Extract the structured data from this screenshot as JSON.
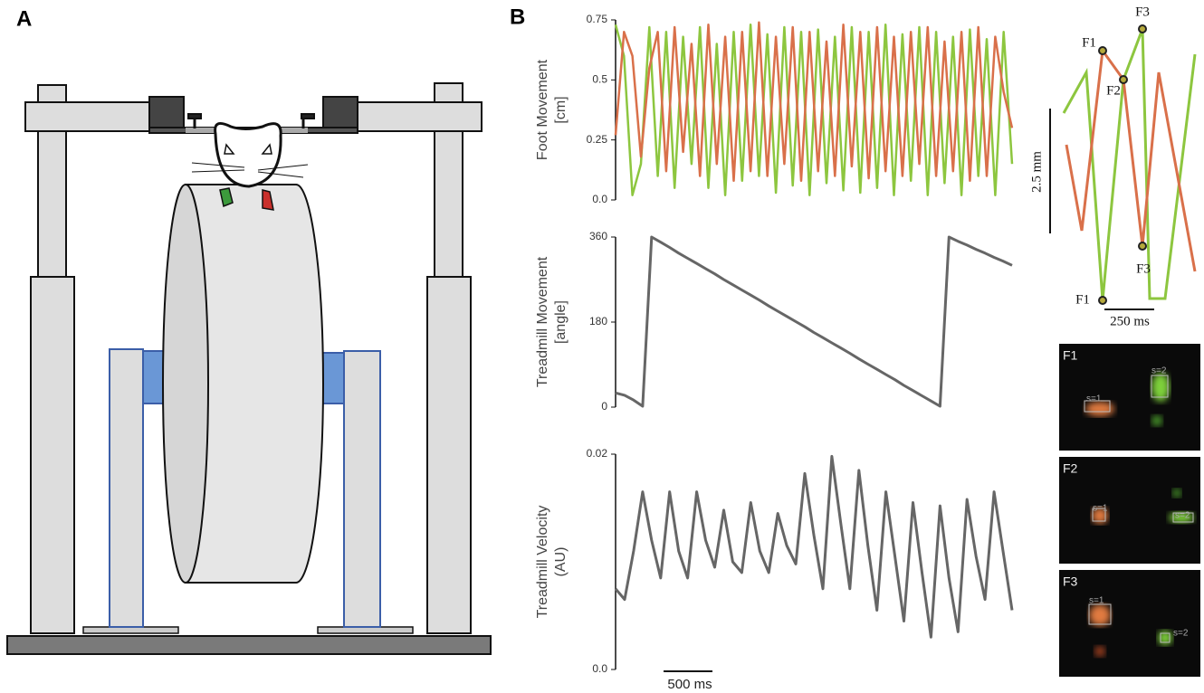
{
  "panel_labels": [
    "A",
    "B"
  ],
  "chart_data": [
    {
      "type": "line",
      "ylabel": [
        "Foot Movement",
        "[cm]"
      ],
      "ylim": [
        0,
        0.75
      ],
      "yticks": [
        {
          "value": 0,
          "label": "0.0"
        },
        0.25,
        0.5,
        0.75
      ],
      "series": [
        {
          "color": "#8dc63f",
          "values": [
            0.73,
            0.6,
            0.02,
            0.15,
            0.72,
            0.1,
            0.7,
            0.05,
            0.68,
            0.15,
            0.72,
            0.05,
            0.65,
            0.02,
            0.7,
            0.08,
            0.73,
            0.1,
            0.69,
            0.03,
            0.72,
            0.06,
            0.7,
            0.02,
            0.71,
            0.07,
            0.68,
            0.04,
            0.72,
            0.03,
            0.7,
            0.05,
            0.73,
            0.02,
            0.69,
            0.08,
            0.72,
            0.02,
            0.7,
            0.07,
            0.68,
            0.02,
            0.71,
            0.1,
            0.67,
            0.02,
            0.7,
            0.15
          ]
        },
        {
          "color": "#d9704a",
          "values": [
            0.27,
            0.7,
            0.6,
            0.18,
            0.55,
            0.7,
            0.12,
            0.72,
            0.2,
            0.65,
            0.1,
            0.73,
            0.15,
            0.68,
            0.08,
            0.7,
            0.12,
            0.74,
            0.1,
            0.68,
            0.15,
            0.72,
            0.08,
            0.7,
            0.12,
            0.66,
            0.1,
            0.73,
            0.14,
            0.7,
            0.09,
            0.72,
            0.12,
            0.68,
            0.1,
            0.7,
            0.15,
            0.72,
            0.1,
            0.66,
            0.12,
            0.7,
            0.08,
            0.72,
            0.1,
            0.68,
            0.45,
            0.3
          ]
        }
      ]
    },
    {
      "type": "line",
      "ylabel": [
        "Treadmill Movement",
        "[angle]"
      ],
      "ylim": [
        0,
        360
      ],
      "yticks": [
        0,
        180,
        360
      ],
      "series": [
        {
          "color": "#666666",
          "values": [
            30,
            25,
            15,
            2,
            360,
            349,
            338,
            326,
            315,
            304,
            293,
            282,
            270,
            259,
            248,
            237,
            226,
            214,
            203,
            192,
            181,
            170,
            158,
            147,
            136,
            125,
            114,
            102,
            91,
            80,
            69,
            58,
            46,
            35,
            24,
            13,
            2,
            360,
            351,
            343,
            334,
            326,
            317,
            309,
            300
          ]
        }
      ]
    },
    {
      "type": "line",
      "ylabel": [
        "Treadmill Velocity",
        "(AU)"
      ],
      "ylim": [
        0,
        0.02
      ],
      "yticks": [
        {
          "value": 0,
          "label": "0.0"
        },
        0.02
      ],
      "series": [
        {
          "color": "#666666",
          "values": [
            0.0075,
            0.0065,
            0.011,
            0.0165,
            0.012,
            0.0085,
            0.0165,
            0.011,
            0.0085,
            0.0165,
            0.012,
            0.0095,
            0.0148,
            0.01,
            0.009,
            0.0155,
            0.011,
            0.009,
            0.0145,
            0.0115,
            0.0098,
            0.0182,
            0.0125,
            0.0075,
            0.0198,
            0.0135,
            0.0075,
            0.0185,
            0.0115,
            0.0055,
            0.0165,
            0.0105,
            0.0045,
            0.0155,
            0.009,
            0.003,
            0.0152,
            0.0085,
            0.0035,
            0.0158,
            0.0105,
            0.0065,
            0.0165,
            0.011,
            0.0055
          ]
        }
      ]
    }
  ],
  "scale_bar": "500 ms",
  "inset": {
    "scale_y": "2.5 mm",
    "scale_x": "250 ms",
    "point_labels": [
      "F1",
      "F2",
      "F3",
      "F3",
      "F1"
    ]
  },
  "frames": [
    {
      "label": "F1",
      "boxes": [
        "s=1",
        "s=2"
      ]
    },
    {
      "label": "F2",
      "boxes": [
        "s=1",
        "s=2"
      ]
    },
    {
      "label": "F3",
      "boxes": [
        "s=1",
        "s=2"
      ]
    }
  ]
}
